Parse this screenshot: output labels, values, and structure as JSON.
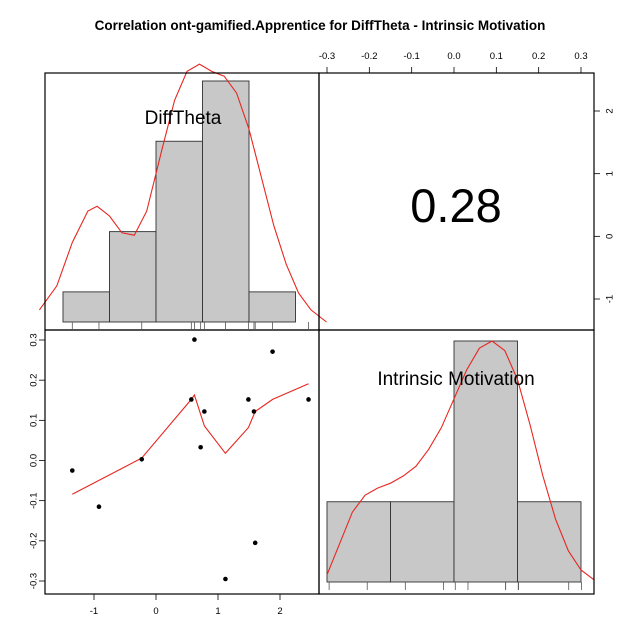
{
  "title": "Correlation ont-gamified.Apprentice for DiffTheta - Intrinsic Motivation",
  "chart_data": {
    "type": "scatter",
    "variables": [
      "DiffTheta",
      "Intrinsic Motivation"
    ],
    "correlation_text": "0.28",
    "x_ticks": [
      "-1",
      "0",
      "1",
      "2"
    ],
    "y_ticks_left": [
      "-0.3",
      "-0.2",
      "-0.1",
      "0.0",
      "0.1",
      "0.2",
      "0.3"
    ],
    "x_ticks_top": [
      "-0.3",
      "-0.2",
      "-0.1",
      "0.0",
      "0.1",
      "0.2",
      "0.3"
    ],
    "y_ticks_right": [
      "-1",
      "0",
      "1",
      "2"
    ],
    "scatter_points": [
      {
        "x": -1.35,
        "y": -0.025
      },
      {
        "x": -0.92,
        "y": -0.115
      },
      {
        "x": -0.23,
        "y": 0.003
      },
      {
        "x": 0.57,
        "y": 0.152
      },
      {
        "x": 0.62,
        "y": 0.301
      },
      {
        "x": 0.72,
        "y": 0.033
      },
      {
        "x": 0.78,
        "y": 0.122
      },
      {
        "x": 1.12,
        "y": -0.295
      },
      {
        "x": 1.49,
        "y": 0.152
      },
      {
        "x": 1.58,
        "y": 0.122
      },
      {
        "x": 1.6,
        "y": -0.205
      },
      {
        "x": 1.88,
        "y": 0.271
      },
      {
        "x": 2.46,
        "y": 0.152
      }
    ],
    "smooth_line": [
      {
        "x": -1.35,
        "y": -0.084
      },
      {
        "x": -0.23,
        "y": 0.006
      },
      {
        "x": 0.57,
        "y": 0.152
      },
      {
        "x": 0.62,
        "y": 0.163
      },
      {
        "x": 0.78,
        "y": 0.086
      },
      {
        "x": 1.12,
        "y": 0.018
      },
      {
        "x": 1.49,
        "y": 0.082
      },
      {
        "x": 1.6,
        "y": 0.122
      },
      {
        "x": 1.88,
        "y": 0.152
      },
      {
        "x": 2.46,
        "y": 0.191
      }
    ],
    "hist_difftheta": {
      "breaks": [
        -1.5,
        -0.75,
        0.0,
        0.75,
        1.5,
        2.25
      ],
      "heights": [
        0.125,
        0.375,
        0.75,
        1.0,
        0.125
      ],
      "rug": [
        -1.35,
        -0.92,
        -0.23,
        0.57,
        0.62,
        0.72,
        0.78,
        1.12,
        1.49,
        1.58,
        1.6,
        1.88,
        2.46
      ],
      "density": [
        [
          -1.88,
          0.05
        ],
        [
          -1.6,
          0.15
        ],
        [
          -1.35,
          0.33
        ],
        [
          -1.1,
          0.46
        ],
        [
          -0.95,
          0.48
        ],
        [
          -0.75,
          0.44
        ],
        [
          -0.55,
          0.37
        ],
        [
          -0.35,
          0.36
        ],
        [
          -0.15,
          0.46
        ],
        [
          0.1,
          0.72
        ],
        [
          0.3,
          0.92
        ],
        [
          0.5,
          1.04
        ],
        [
          0.7,
          1.07
        ],
        [
          0.9,
          1.04
        ],
        [
          1.1,
          1.02
        ],
        [
          1.3,
          0.95
        ],
        [
          1.5,
          0.8
        ],
        [
          1.7,
          0.6
        ],
        [
          1.9,
          0.4
        ],
        [
          2.1,
          0.24
        ],
        [
          2.3,
          0.12
        ],
        [
          2.5,
          0.05
        ],
        [
          2.75,
          0.0
        ]
      ]
    },
    "hist_intrinsic": {
      "breaks": [
        -0.3,
        -0.15,
        0.0,
        0.15,
        0.3
      ],
      "heights": [
        0.333,
        0.333,
        1.0,
        0.333
      ],
      "rug": [
        -0.295,
        -0.205,
        -0.115,
        -0.025,
        0.003,
        0.033,
        0.122,
        0.122,
        0.152,
        0.152,
        0.152,
        0.271,
        0.301
      ],
      "density": [
        [
          -0.3,
          0.03
        ],
        [
          -0.27,
          0.16
        ],
        [
          -0.24,
          0.29
        ],
        [
          -0.21,
          0.36
        ],
        [
          -0.18,
          0.39
        ],
        [
          -0.15,
          0.41
        ],
        [
          -0.12,
          0.44
        ],
        [
          -0.09,
          0.48
        ],
        [
          -0.06,
          0.55
        ],
        [
          -0.03,
          0.64
        ],
        [
          0.0,
          0.76
        ],
        [
          0.03,
          0.88
        ],
        [
          0.06,
          0.97
        ],
        [
          0.09,
          1.0
        ],
        [
          0.12,
          0.96
        ],
        [
          0.15,
          0.84
        ],
        [
          0.18,
          0.65
        ],
        [
          0.21,
          0.44
        ],
        [
          0.24,
          0.26
        ],
        [
          0.27,
          0.13
        ],
        [
          0.3,
          0.05
        ],
        [
          0.33,
          0.01
        ]
      ]
    },
    "colors": {
      "bar_fill": "#c8c8c8",
      "bar_stroke": "#303030",
      "line": "#e8261f",
      "point": "#000000",
      "frame": "#000000"
    }
  }
}
